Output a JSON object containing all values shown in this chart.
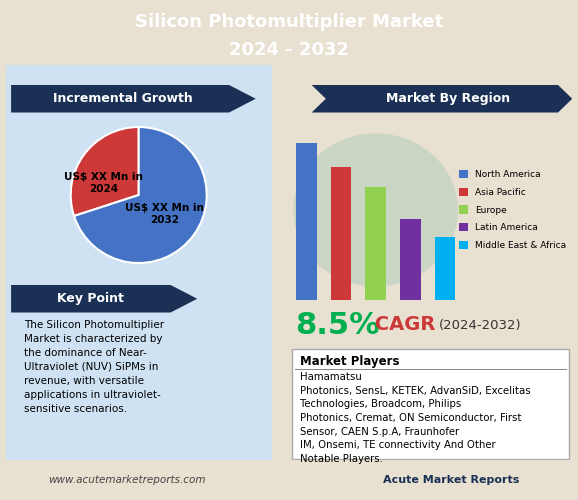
{
  "title_line1": "Silicon Photomultiplier Market",
  "title_line2": "2024 - 2032",
  "title_bg": "#1a3055",
  "title_fg": "#ffffff",
  "bg_color": "#e8e0d0",
  "panel_bg": "#cfe2f3",
  "inc_growth_label": "Incremental Growth",
  "pie_values": [
    30,
    70
  ],
  "pie_colors": [
    "#cd3838",
    "#4472c4"
  ],
  "pie_labels_0": "US$ XX Mn in\n2024",
  "pie_labels_1": "US$ XX Mn in\n2032",
  "key_point_label": "Key Point",
  "key_point_text": "The Silicon Photomultiplier\nMarket is characterized by\nthe dominance of Near-\nUltraviolet (NUV) SiPMs in\nrevenue, with versatile\napplications in ultraviolet-\nsensitive scenarios.",
  "region_label": "Market By Region",
  "bar_categories": [
    "North America",
    "Asia Pacific",
    "Europe",
    "Latin America",
    "Middle East & Africa"
  ],
  "bar_values": [
    100,
    85,
    72,
    52,
    40
  ],
  "bar_colors": [
    "#4472c4",
    "#cd3838",
    "#92d050",
    "#7030a0",
    "#00b0f0"
  ],
  "cagr_value": "8.5%",
  "cagr_label": " CAGR ",
  "cagr_period": "(2024-2032)",
  "cagr_value_color": "#00b050",
  "cagr_label_color": "#cd3838",
  "cagr_period_color": "#333333",
  "players_label": "Market Players",
  "players_text": "Hamamatsu\nPhotonics, SensL, KETEK, AdvanSiD, Excelitas\nTechnologies, Broadcom, Philips\nPhotonics, Cremat, ON Semiconductor, First\nSensor, CAEN S.p.A, Fraunhofer\nIM, Onsemi, TE connectivity And Other\nNotable Players.",
  "footer_text": "www.acutemarketreports.com",
  "footer_logo": "Acute Market Reports",
  "arrow_color": "#1a3055"
}
